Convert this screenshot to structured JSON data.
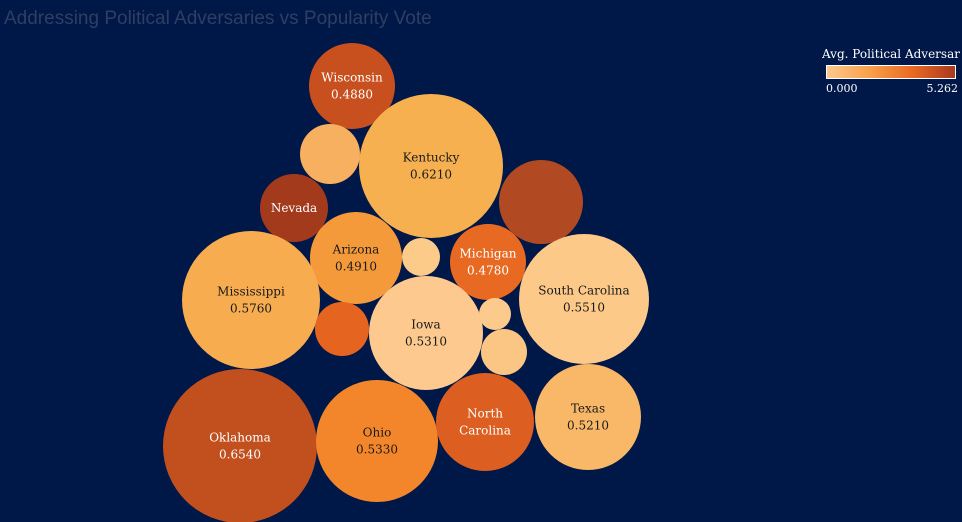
{
  "chart_data": {
    "type": "bubble",
    "title": "Addressing Political Adversaries vs Popularity Vote",
    "size_measure": "Popularity Vote",
    "color_measure": "Avg. Political Adversari..",
    "color_range": [
      0.0,
      5.262
    ],
    "color_scale": [
      "#fcc98d",
      "#f8a04a",
      "#e96a22",
      "#a93a1f"
    ],
    "legend": {
      "title": "Avg. Political Adversari..",
      "min_label": "0.000",
      "max_label": "5.262",
      "position": "top-right"
    },
    "points": [
      {
        "label": "Wisconsin",
        "value_label": "0.4880",
        "size": 0.488,
        "color": "#c8501f",
        "text_color": "#ffffff"
      },
      {
        "label": "",
        "value_label": "",
        "size": 0.31,
        "color": "#f6b060",
        "text_color": "#ffffff"
      },
      {
        "label": "Kentucky",
        "value_label": "0.6210",
        "size": 0.621,
        "color": "#f6b050",
        "text_color": "#1a1a1a"
      },
      {
        "label": "Nevada",
        "value_label": "",
        "size": 0.39,
        "color": "#a33a1c",
        "text_color": "#ffffff"
      },
      {
        "label": "",
        "value_label": "",
        "size": 0.45,
        "color": "#b14a22",
        "text_color": "#ffffff"
      },
      {
        "label": "Arizona",
        "value_label": "0.4910",
        "size": 0.491,
        "color": "#f59a3a",
        "text_color": "#1a1a1a"
      },
      {
        "label": "",
        "value_label": "",
        "size": 0.22,
        "color": "#fccb8a",
        "text_color": "#1a1a1a"
      },
      {
        "label": "Michigan",
        "value_label": "0.4780",
        "size": 0.478,
        "color": "#e86a22",
        "text_color": "#ffffff"
      },
      {
        "label": "Mississippi",
        "value_label": "0.5760",
        "size": 0.576,
        "color": "#f7ac50",
        "text_color": "#1a1a1a"
      },
      {
        "label": "South Carolina",
        "value_label": "0.5510",
        "size": 0.551,
        "color": "#fdc989",
        "text_color": "#1a1a1a"
      },
      {
        "label": "",
        "value_label": "",
        "size": 0.3,
        "color": "#e56520",
        "text_color": "#ffffff"
      },
      {
        "label": "Iowa",
        "value_label": "0.5310",
        "size": 0.531,
        "color": "#fdc98e",
        "text_color": "#1a1a1a"
      },
      {
        "label": "",
        "value_label": "",
        "size": 0.18,
        "color": "#fcca8c",
        "text_color": "#1a1a1a"
      },
      {
        "label": "",
        "value_label": "",
        "size": 0.25,
        "color": "#fbc683",
        "text_color": "#1a1a1a"
      },
      {
        "label": "Oklahoma",
        "value_label": "0.6540",
        "size": 0.654,
        "color": "#c2501f",
        "text_color": "#ffffff"
      },
      {
        "label": "Ohio",
        "value_label": "0.5330",
        "size": 0.533,
        "color": "#f3862b",
        "text_color": "#1a1a1a"
      },
      {
        "label": "North\nCarolina",
        "value_label": "",
        "size": 0.47,
        "color": "#dc5e20",
        "text_color": "#ffffff"
      },
      {
        "label": "Texas",
        "value_label": "0.5210",
        "size": 0.521,
        "color": "#f9b867",
        "text_color": "#1a1a1a"
      }
    ]
  }
}
